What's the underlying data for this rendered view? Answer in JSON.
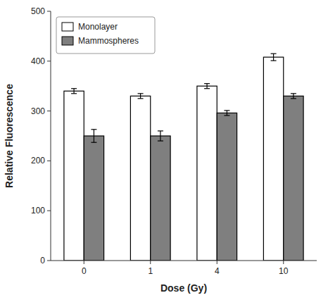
{
  "chart_data": {
    "type": "bar",
    "xlabel": "Dose (Gy)",
    "ylabel": "Relative Fluorescence",
    "categories": [
      "0",
      "1",
      "4",
      "10"
    ],
    "series": [
      {
        "name": "Monolayer",
        "color": "#ffffff",
        "values": [
          340,
          330,
          350,
          408
        ],
        "errors": [
          5,
          5,
          5,
          7
        ]
      },
      {
        "name": "Mammospheres",
        "color": "#7f7f7f",
        "values": [
          250,
          250,
          296,
          330
        ],
        "errors": [
          13,
          10,
          5,
          5
        ]
      }
    ],
    "ylim": [
      0,
      500
    ],
    "yticks": [
      0,
      100,
      200,
      300,
      400,
      500
    ],
    "grid": false,
    "legend": "upper left"
  }
}
